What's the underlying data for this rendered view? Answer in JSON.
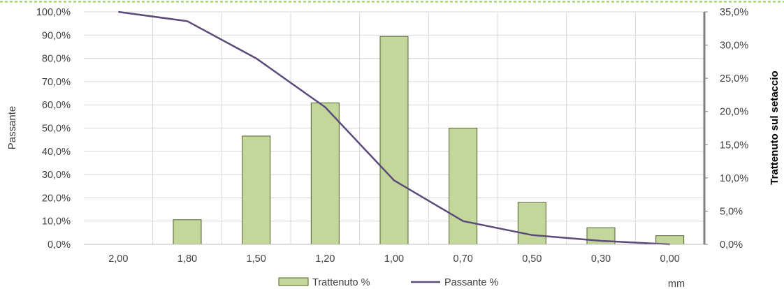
{
  "chart_data": {
    "type": "bar",
    "categories": [
      "2,00",
      "1,80",
      "1,50",
      "1,20",
      "1,00",
      "0,70",
      "0,50",
      "0,30",
      "0,00"
    ],
    "series": [
      {
        "name": "Trattenuto %",
        "kind": "bar",
        "axis": "right",
        "values": [
          0.0,
          3.7,
          16.3,
          21.3,
          31.3,
          17.5,
          6.3,
          2.5,
          1.3
        ]
      },
      {
        "name": "Passante %",
        "kind": "line",
        "axis": "left",
        "values": [
          100.0,
          96.0,
          80.0,
          59.0,
          27.5,
          10.0,
          4.0,
          1.5,
          0.0
        ]
      }
    ],
    "ylabel": "Passante",
    "y2label": "Trattenuto sul setaccio",
    "xlabel": "mm",
    "ylim": [
      0,
      100
    ],
    "y2lim": [
      0,
      35
    ],
    "yticks": [
      "0,0%",
      "10,0%",
      "20,0%",
      "30,0%",
      "40,0%",
      "50,0%",
      "60,0%",
      "70,0%",
      "80,0%",
      "90,0%",
      "100,0%"
    ],
    "y2ticks": [
      "0,0%",
      "5,0%",
      "10,0%",
      "15,0%",
      "20,0%",
      "25,0%",
      "30,0%",
      "35,0%"
    ],
    "grid": true,
    "legend_position": "bottom",
    "colors": {
      "bar_fill": "#c4d79b",
      "bar_stroke": "#4f6228",
      "line": "#5b4a7a",
      "grid": "#d9d9d9",
      "right_axis": "#808080",
      "top_dashes": "#92d050"
    }
  }
}
